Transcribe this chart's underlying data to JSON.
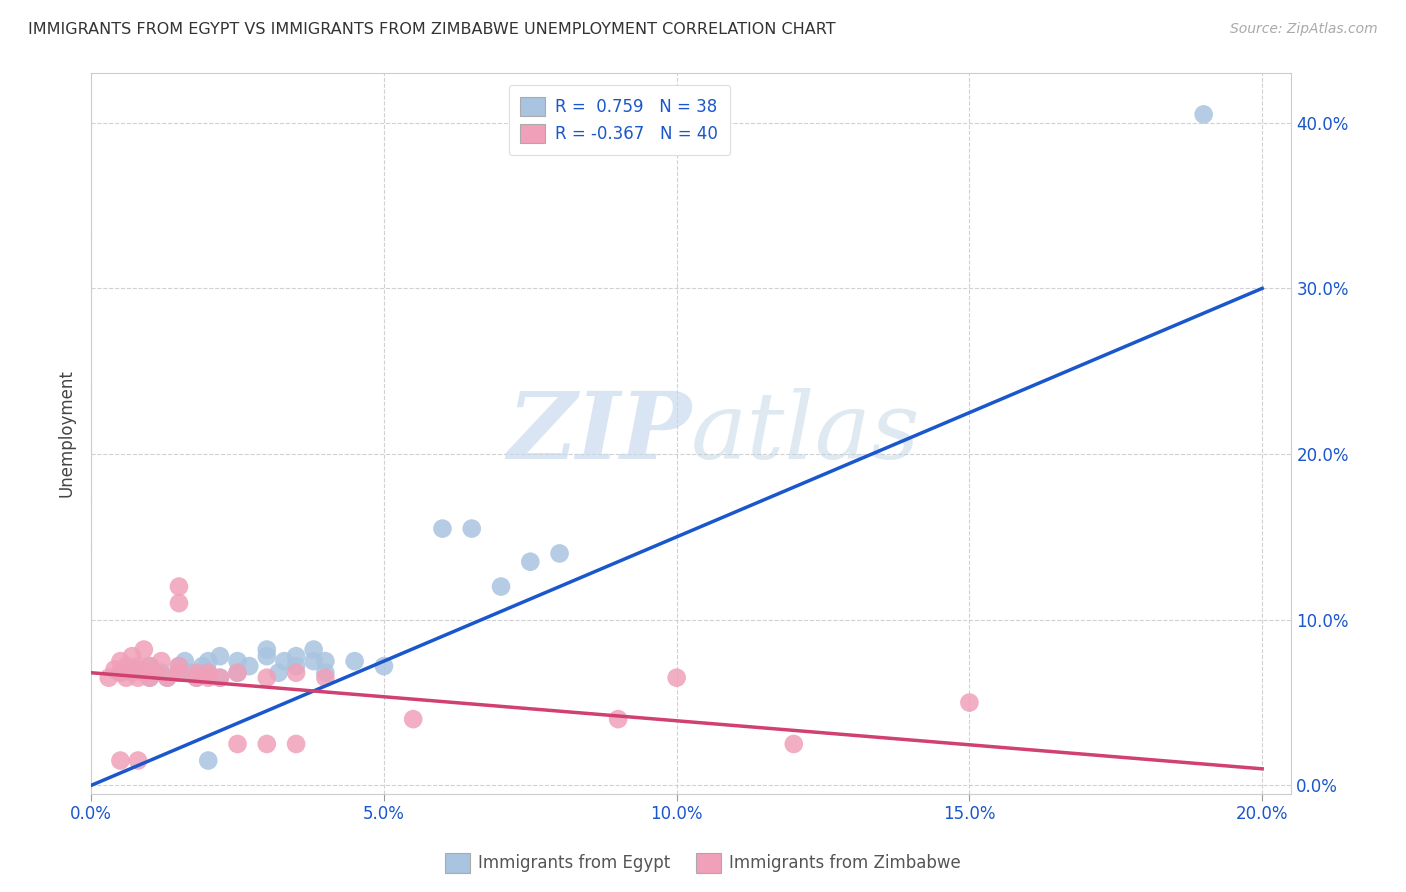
{
  "title": "IMMIGRANTS FROM EGYPT VS IMMIGRANTS FROM ZIMBABWE UNEMPLOYMENT CORRELATION CHART",
  "source": "Source: ZipAtlas.com",
  "ylabel": "Unemployment",
  "xlim": [
    0.0,
    0.205
  ],
  "ylim": [
    -0.005,
    0.43
  ],
  "egypt_R": 0.759,
  "egypt_N": 38,
  "zimbabwe_R": -0.367,
  "zimbabwe_N": 40,
  "egypt_color": "#a8c4e0",
  "egypt_line_color": "#1a56cc",
  "zimbabwe_color": "#f0a0b8",
  "zimbabwe_line_color": "#d04070",
  "legend_label_egypt": "R =  0.759   N = 38",
  "legend_label_zimbabwe": "R = -0.367   N = 40",
  "bottom_legend_egypt": "Immigrants from Egypt",
  "bottom_legend_zimbabwe": "Immigrants from Zimbabwe",
  "watermark_zip": "ZIP",
  "watermark_atlas": "atlas",
  "background_color": "#ffffff",
  "grid_color": "#cccccc",
  "egypt_line_x": [
    0.0,
    0.2
  ],
  "egypt_line_y": [
    0.0,
    0.3
  ],
  "zimbabwe_line_x": [
    0.0,
    0.2
  ],
  "zimbabwe_line_y": [
    0.068,
    0.01
  ],
  "egypt_scatter": [
    [
      0.005,
      0.068
    ],
    [
      0.008,
      0.07
    ],
    [
      0.01,
      0.065
    ],
    [
      0.01,
      0.072
    ],
    [
      0.012,
      0.068
    ],
    [
      0.013,
      0.065
    ],
    [
      0.015,
      0.068
    ],
    [
      0.015,
      0.072
    ],
    [
      0.016,
      0.075
    ],
    [
      0.017,
      0.068
    ],
    [
      0.018,
      0.065
    ],
    [
      0.019,
      0.072
    ],
    [
      0.02,
      0.068
    ],
    [
      0.02,
      0.075
    ],
    [
      0.022,
      0.065
    ],
    [
      0.022,
      0.078
    ],
    [
      0.025,
      0.068
    ],
    [
      0.025,
      0.075
    ],
    [
      0.027,
      0.072
    ],
    [
      0.03,
      0.078
    ],
    [
      0.03,
      0.082
    ],
    [
      0.032,
      0.068
    ],
    [
      0.033,
      0.075
    ],
    [
      0.035,
      0.072
    ],
    [
      0.035,
      0.078
    ],
    [
      0.038,
      0.075
    ],
    [
      0.038,
      0.082
    ],
    [
      0.04,
      0.068
    ],
    [
      0.04,
      0.075
    ],
    [
      0.045,
      0.075
    ],
    [
      0.05,
      0.072
    ],
    [
      0.06,
      0.155
    ],
    [
      0.065,
      0.155
    ],
    [
      0.07,
      0.12
    ],
    [
      0.075,
      0.135
    ],
    [
      0.08,
      0.14
    ],
    [
      0.19,
      0.405
    ],
    [
      0.02,
      0.015
    ]
  ],
  "zimbabwe_scatter": [
    [
      0.003,
      0.065
    ],
    [
      0.004,
      0.07
    ],
    [
      0.005,
      0.068
    ],
    [
      0.005,
      0.075
    ],
    [
      0.006,
      0.065
    ],
    [
      0.006,
      0.072
    ],
    [
      0.007,
      0.068
    ],
    [
      0.007,
      0.078
    ],
    [
      0.008,
      0.065
    ],
    [
      0.008,
      0.072
    ],
    [
      0.009,
      0.068
    ],
    [
      0.009,
      0.082
    ],
    [
      0.01,
      0.065
    ],
    [
      0.01,
      0.072
    ],
    [
      0.011,
      0.068
    ],
    [
      0.012,
      0.075
    ],
    [
      0.013,
      0.065
    ],
    [
      0.015,
      0.068
    ],
    [
      0.015,
      0.072
    ],
    [
      0.015,
      0.11
    ],
    [
      0.015,
      0.12
    ],
    [
      0.018,
      0.065
    ],
    [
      0.018,
      0.068
    ],
    [
      0.02,
      0.065
    ],
    [
      0.02,
      0.068
    ],
    [
      0.022,
      0.065
    ],
    [
      0.025,
      0.068
    ],
    [
      0.025,
      0.025
    ],
    [
      0.03,
      0.065
    ],
    [
      0.03,
      0.025
    ],
    [
      0.035,
      0.068
    ],
    [
      0.035,
      0.025
    ],
    [
      0.04,
      0.065
    ],
    [
      0.055,
      0.04
    ],
    [
      0.09,
      0.04
    ],
    [
      0.1,
      0.065
    ],
    [
      0.12,
      0.025
    ],
    [
      0.15,
      0.05
    ],
    [
      0.005,
      0.015
    ],
    [
      0.008,
      0.015
    ]
  ]
}
